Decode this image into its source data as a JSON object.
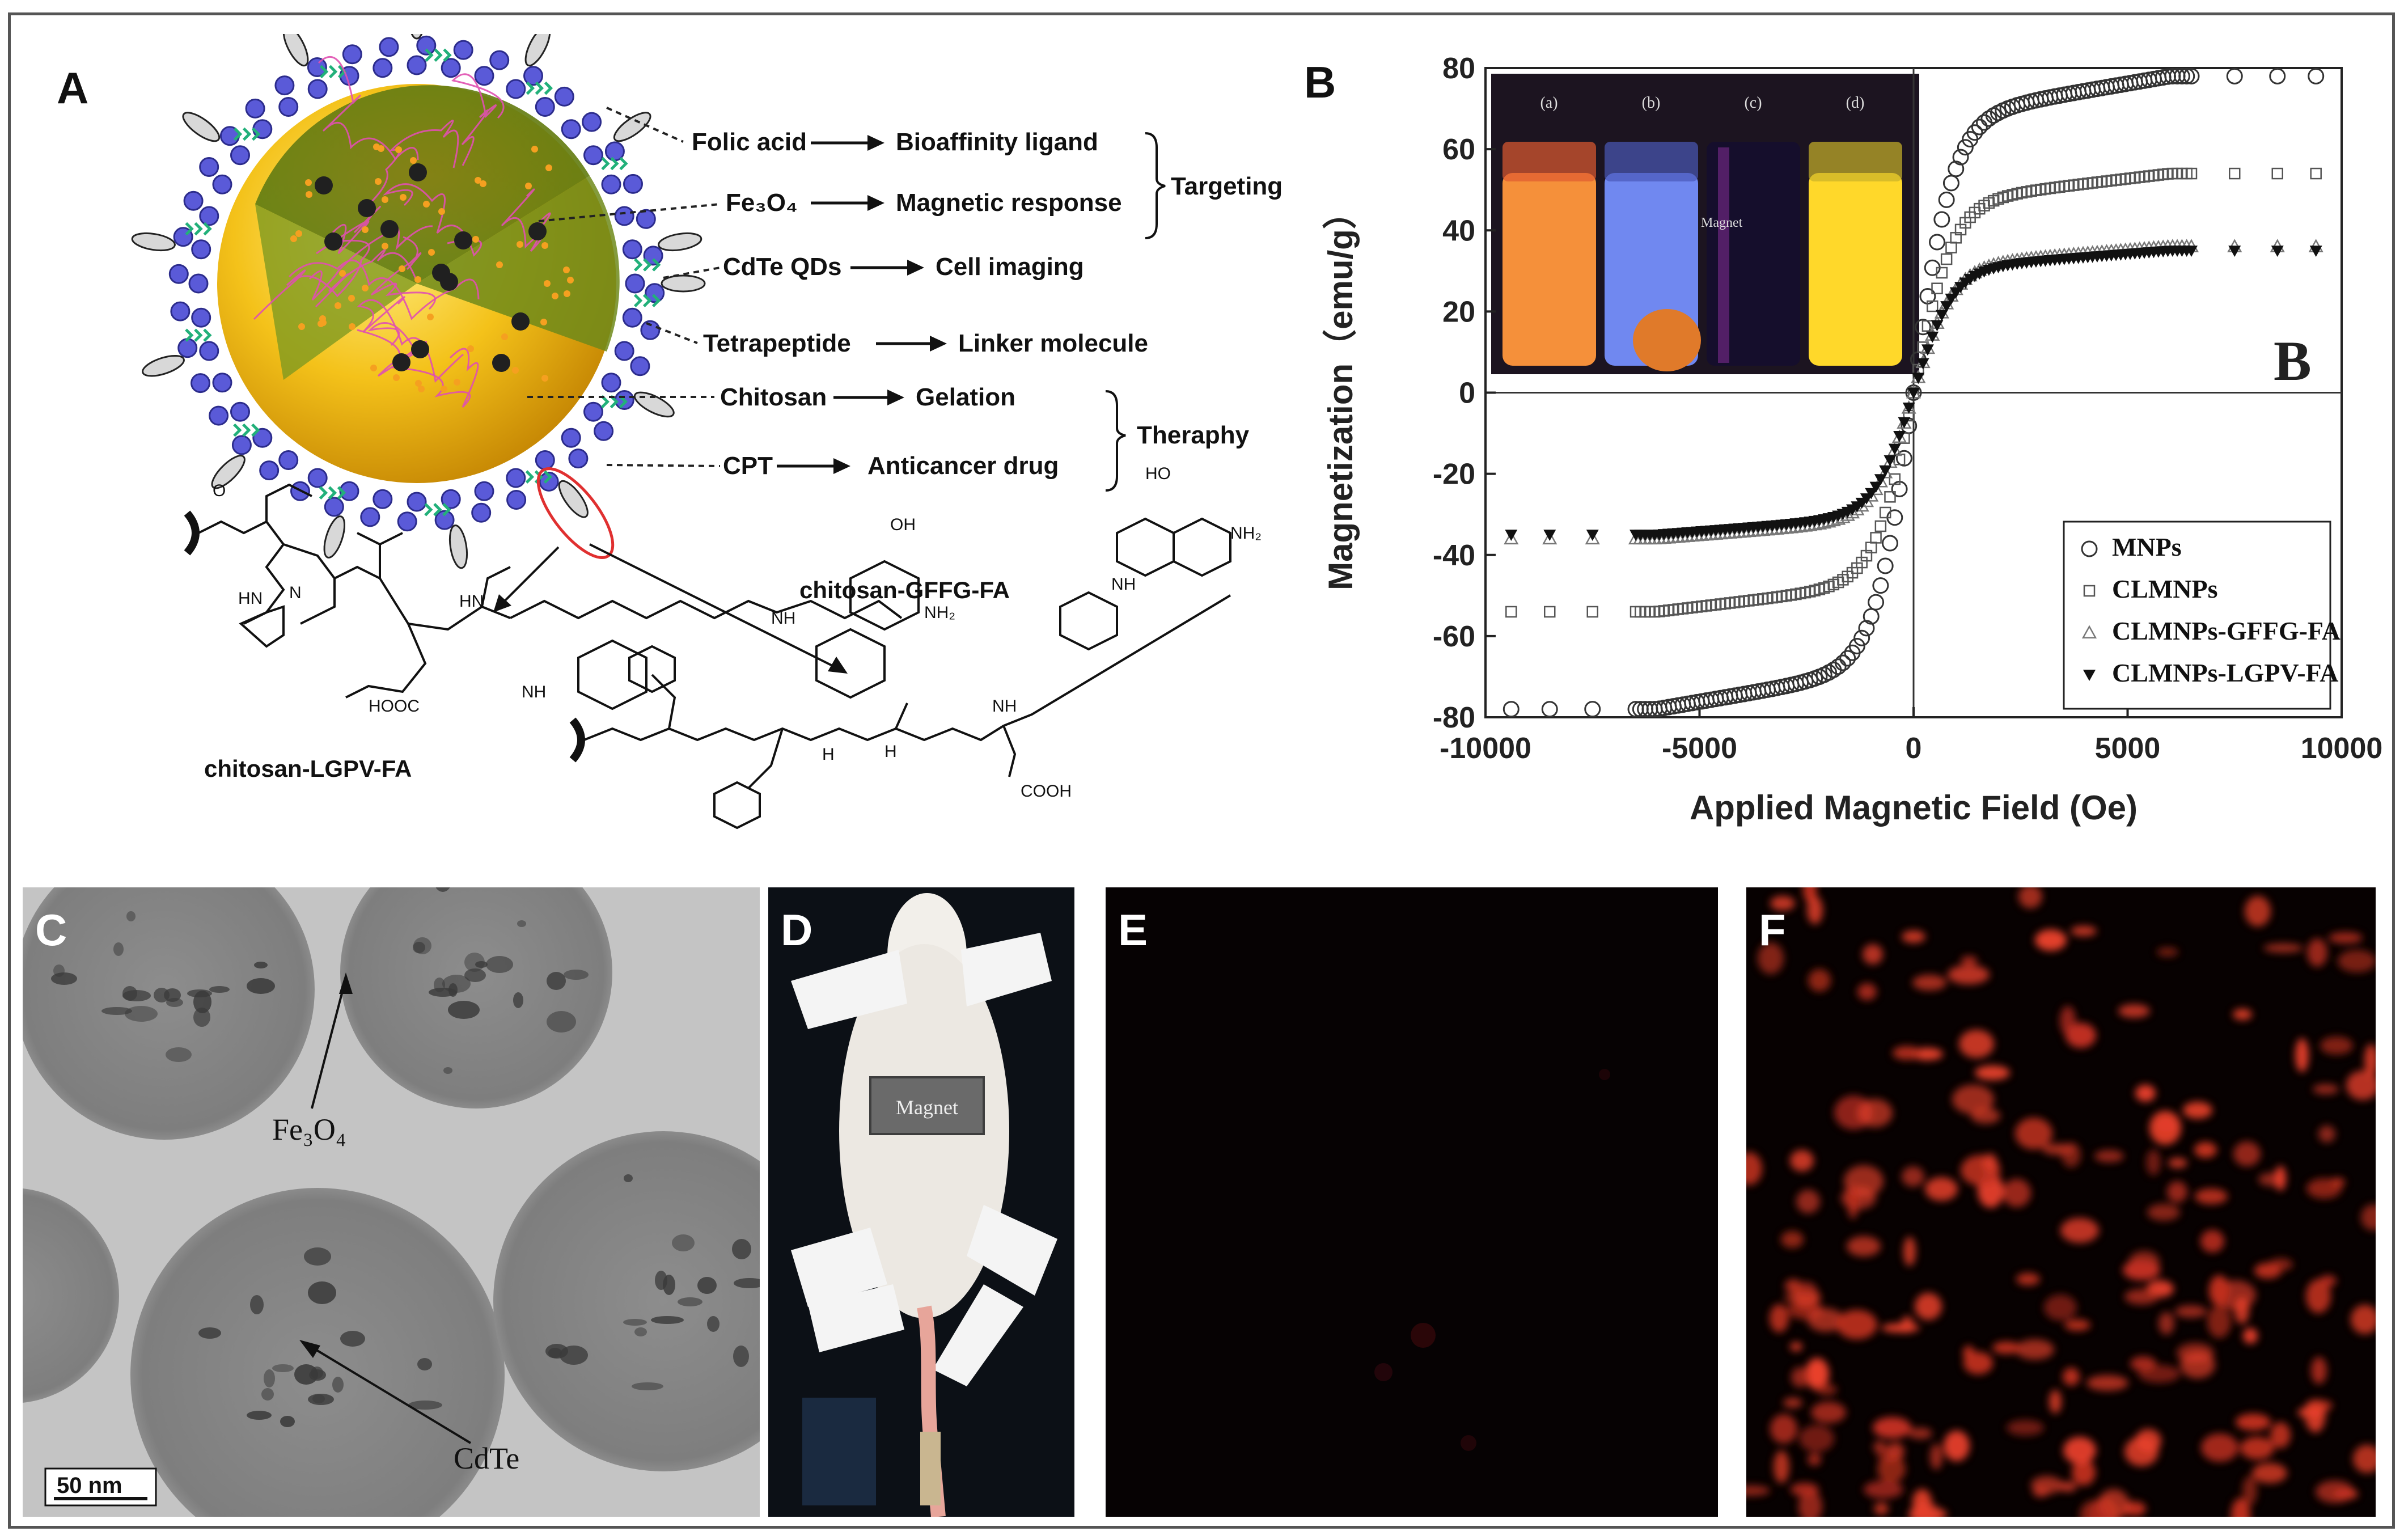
{
  "panels": {
    "a": "A",
    "b": "B",
    "c": "C",
    "d": "D",
    "e": "E",
    "f": "F"
  },
  "schematic": {
    "labels": [
      {
        "left": "Folic acid",
        "right": "Bioaffinity ligand"
      },
      {
        "left": "Fe₃O₄",
        "right": "Magnetic response"
      },
      {
        "left": "CdTe QDs",
        "right": "Cell imaging"
      },
      {
        "left": "Tetrapeptide",
        "right": "Linker molecule"
      },
      {
        "left": "Chitosan",
        "right": "Gelation"
      },
      {
        "left": "CPT",
        "right": "Anticancer drug"
      }
    ],
    "groups": {
      "top": "Targeting",
      "bottom": "Theraphy"
    },
    "chem_left_name": "chitosan-LGPV-FA",
    "chem_right_name": "chitosan-GFFG-FA",
    "atoms": {
      "o": "O",
      "n": "N",
      "h": "H",
      "hn": "HN",
      "nh": "NH",
      "nh2": "NH₂",
      "oh": "OH",
      "ho": "HO",
      "hooc": "HOOC",
      "cooh": "COOH"
    }
  },
  "chart_data": {
    "type": "scatter",
    "xlabel": "Applied Magnetic Field (Oe)",
    "ylabel": "Magnetization（emu/g）",
    "xlim": [
      -10000,
      10000
    ],
    "ylim": [
      -80,
      80
    ],
    "xticks": [
      -10000,
      -5000,
      0,
      5000,
      10000
    ],
    "yticks": [
      -80,
      -60,
      -40,
      -20,
      0,
      20,
      40,
      60,
      80
    ],
    "panel_letter": "B",
    "legend_position": "bottom-right",
    "series": [
      {
        "name": "MNPs",
        "marker": "circle",
        "ms": 78
      },
      {
        "name": "CLMNPs",
        "marker": "square",
        "ms": 54
      },
      {
        "name": "CLMNPs-GFFG-FA",
        "marker": "triangle-up",
        "ms": 36
      },
      {
        "name": "CLMNPs-LGPV-FA",
        "marker": "triangle-down-filled",
        "ms": 35
      }
    ],
    "inset": {
      "vials": [
        "(a)",
        "(b)",
        "(c)",
        "(d)"
      ],
      "magnet_label": "Magnet"
    }
  },
  "tem": {
    "fe3o4": "Fe₃O₄",
    "cdte": "CdTe",
    "scale": "50 nm"
  },
  "mouse": {
    "magnet": "Magnet"
  }
}
